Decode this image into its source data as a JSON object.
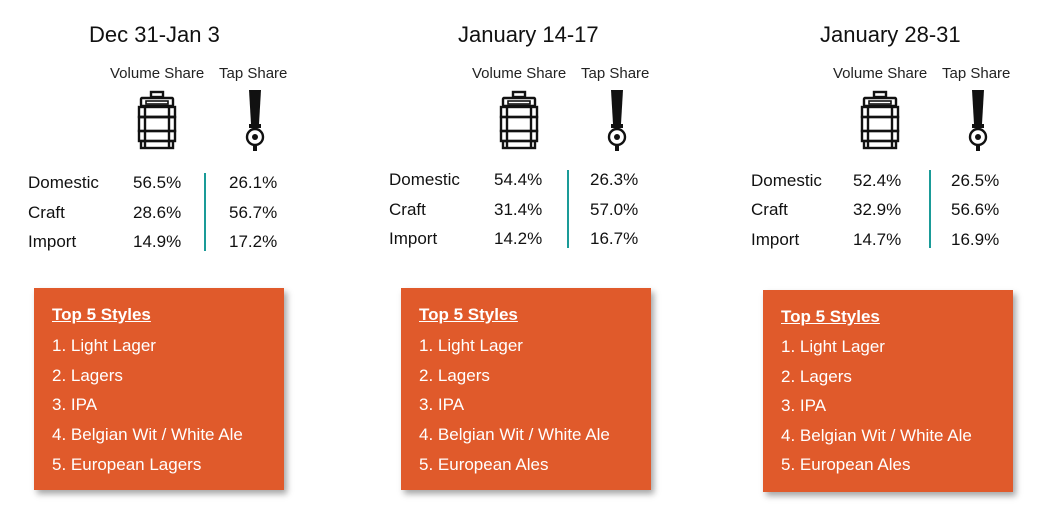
{
  "panels": [
    {
      "title": "Dec 31-Jan 3",
      "volume_header": "Volume Share",
      "tap_header": "Tap Share",
      "rows": [
        {
          "label": "Domestic",
          "volume": "56.5%",
          "tap": "26.1%"
        },
        {
          "label": "Craft",
          "volume": "28.6%",
          "tap": "56.7%"
        },
        {
          "label": "Import",
          "volume": "14.9%",
          "tap": "17.2%"
        }
      ],
      "styles_heading": "Top 5 Styles",
      "styles": [
        "1. Light Lager",
        "2. Lagers",
        "3. IPA",
        "4. Belgian Wit / White Ale",
        "5. European Lagers"
      ]
    },
    {
      "title": "January 14-17",
      "volume_header": "Volume Share",
      "tap_header": "Tap Share",
      "rows": [
        {
          "label": "Domestic",
          "volume": "54.4%",
          "tap": "26.3%"
        },
        {
          "label": "Craft",
          "volume": "31.4%",
          "tap": "57.0%"
        },
        {
          "label": "Import",
          "volume": "14.2%",
          "tap": "16.7%"
        }
      ],
      "styles_heading": "Top 5 Styles",
      "styles": [
        "1. Light Lager",
        "2. Lagers",
        "3. IPA",
        "4. Belgian Wit / White Ale",
        "5. European Ales"
      ]
    },
    {
      "title": "January 28-31",
      "volume_header": "Volume Share",
      "tap_header": "Tap Share",
      "rows": [
        {
          "label": "Domestic",
          "volume": "52.4%",
          "tap": "26.5%"
        },
        {
          "label": "Craft",
          "volume": "32.9%",
          "tap": "56.6%"
        },
        {
          "label": "Import",
          "volume": "14.7%",
          "tap": "16.9%"
        }
      ],
      "styles_heading": "Top 5 Styles",
      "styles": [
        "1. Light Lager",
        "2. Lagers",
        "3. IPA",
        "4. Belgian Wit / White Ale",
        "5. European Ales"
      ]
    }
  ],
  "colors": {
    "box_background": "#e05a2b",
    "divider": "#1a9b98",
    "text": "#111111"
  },
  "icons": {
    "volume": "keg-icon",
    "tap": "tap-handle-icon"
  }
}
